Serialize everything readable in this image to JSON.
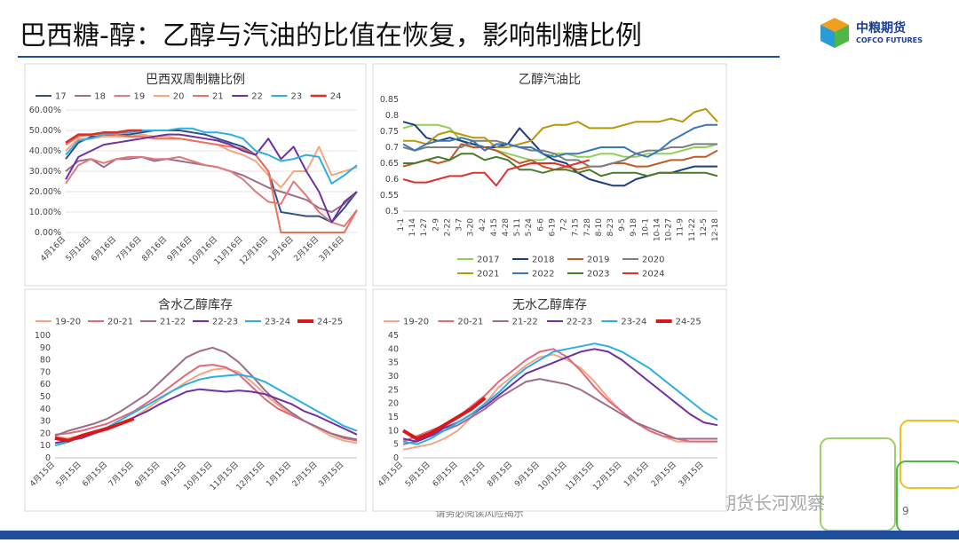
{
  "header": {
    "title": "巴西糖-醇：乙醇与汽油的比值在恢复，影响制糖比例",
    "logo_cn": "中粮期货",
    "logo_en": "COFCO FUTURES"
  },
  "footer": {
    "notice": "请务必阅读风险揭示",
    "watermark": "公众号 · 中粮期货长河观察",
    "page": "9"
  },
  "chart_data": [
    {
      "type": "line",
      "title": "巴西双周制糖比例",
      "legend": "top",
      "grid": true,
      "categories": [
        "4月16日",
        null,
        "5月16日",
        null,
        "6月16日",
        null,
        "7月16日",
        null,
        "8月16日",
        null,
        "9月16日",
        null,
        "10月16日",
        null,
        "11月16日",
        null,
        "12月16日",
        null,
        "1月16日",
        null,
        "2月16日",
        null,
        "3月16日",
        null
      ],
      "ylim": [
        0,
        60
      ],
      "yticks": [
        {
          "value": 0,
          "label": "0.00%"
        },
        {
          "value": 10,
          "label": "10.00%"
        },
        {
          "value": 20,
          "label": "20.00%"
        },
        {
          "value": 30,
          "label": "30.00%"
        },
        {
          "value": 40,
          "label": "40.00%"
        },
        {
          "value": 50,
          "label": "50.00%"
        },
        {
          "value": 60,
          "label": "60.00%"
        }
      ],
      "series": [
        {
          "name": "17",
          "color": "#2e4f8a",
          "values": [
            36,
            44,
            47,
            47,
            48,
            48,
            49,
            50,
            50,
            50,
            49,
            48,
            46,
            44,
            42,
            38,
            30,
            10,
            9,
            8,
            8,
            5,
            12,
            20
          ]
        },
        {
          "name": "18",
          "color": "#9e6b8a",
          "values": [
            30,
            35,
            36,
            32,
            36,
            36,
            37,
            35,
            36,
            35,
            34,
            33,
            32,
            30,
            28,
            25,
            22,
            20,
            18,
            16,
            12,
            10,
            14,
            20
          ]
        },
        {
          "name": "19",
          "color": "#e07a7a",
          "values": [
            24,
            33,
            36,
            34,
            36,
            37,
            37,
            36,
            36,
            37,
            35,
            33,
            32,
            30,
            26,
            20,
            15,
            14,
            25,
            18,
            10,
            5,
            3,
            11
          ]
        },
        {
          "name": "20",
          "color": "#f4a582",
          "values": [
            40,
            46,
            46,
            47,
            47,
            47,
            48,
            47,
            47,
            46,
            45,
            44,
            43,
            40,
            38,
            35,
            28,
            22,
            30,
            30,
            42,
            28,
            30,
            32
          ]
        },
        {
          "name": "21",
          "color": "#e8735a",
          "values": [
            43,
            47,
            48,
            48,
            48,
            47,
            47,
            46,
            46,
            46,
            45,
            44,
            43,
            42,
            41,
            38,
            30,
            0,
            0,
            0,
            0,
            0,
            0,
            11
          ]
        },
        {
          "name": "22",
          "color": "#7030a0",
          "values": [
            26,
            37,
            40,
            43,
            44,
            45,
            46,
            47,
            48,
            48,
            47,
            46,
            45,
            43,
            40,
            38,
            46,
            36,
            42,
            30,
            20,
            5,
            15,
            20
          ]
        },
        {
          "name": "23",
          "color": "#2ab0e0",
          "values": [
            38,
            45,
            46,
            48,
            49,
            49,
            50,
            50,
            50,
            51,
            51,
            49,
            49,
            48,
            46,
            40,
            38,
            35,
            36,
            38,
            37,
            24,
            28,
            33
          ]
        },
        {
          "name": "24",
          "color": "#d73027",
          "values": [
            44,
            48,
            48,
            49,
            49,
            50,
            50,
            null,
            null,
            null,
            null,
            null,
            null,
            null,
            null,
            null,
            null,
            null,
            null,
            null,
            null,
            null,
            null,
            null
          ]
        }
      ]
    },
    {
      "type": "line",
      "title": "乙醇汽油比",
      "legend": "bottom",
      "grid": false,
      "categories": [
        "1-1",
        "1-14",
        "1-27",
        "2-9",
        "2-22",
        "3-7",
        "3-20",
        "4-2",
        "4-15",
        "4-28",
        "5-11",
        "5-24",
        "6-6",
        "6-19",
        "7-2",
        "7-15",
        "7-28",
        "8-10",
        "8-23",
        "9-5",
        "9-18",
        "10-1",
        "10-14",
        "10-27",
        "11-9",
        "11-22",
        "12-5",
        "12-18"
      ],
      "ylim": [
        0.5,
        0.85
      ],
      "yticks": [
        0.5,
        0.55,
        0.6,
        0.65,
        0.7,
        0.75,
        0.8,
        0.85
      ],
      "series": [
        {
          "name": "2017",
          "color": "#8fcf5c",
          "values": [
            0.76,
            0.77,
            0.77,
            0.77,
            0.76,
            0.72,
            0.7,
            0.7,
            0.69,
            0.68,
            0.67,
            0.66,
            0.66,
            0.68,
            0.68,
            0.67,
            0.67,
            0.68,
            0.68,
            0.67,
            0.67,
            0.68,
            0.68,
            0.68,
            0.69,
            0.7,
            0.7,
            0.71
          ]
        },
        {
          "name": "2018",
          "color": "#1f3f7a",
          "values": [
            0.78,
            0.77,
            0.73,
            0.72,
            0.73,
            0.72,
            0.71,
            0.7,
            0.7,
            0.71,
            0.76,
            0.72,
            0.68,
            0.66,
            0.65,
            0.62,
            0.6,
            0.59,
            0.58,
            0.58,
            0.6,
            0.61,
            0.62,
            0.62,
            0.63,
            0.64,
            0.64,
            0.64
          ]
        },
        {
          "name": "2019",
          "color": "#c05a28",
          "values": [
            0.64,
            0.65,
            0.66,
            0.65,
            0.66,
            0.71,
            0.7,
            0.7,
            0.69,
            0.67,
            0.65,
            0.66,
            0.64,
            0.63,
            0.64,
            0.63,
            0.64,
            0.64,
            0.65,
            0.65,
            0.64,
            0.64,
            0.65,
            0.66,
            0.66,
            0.67,
            0.67,
            0.69
          ]
        },
        {
          "name": "2020",
          "color": "#7f7f7f",
          "values": [
            0.7,
            0.69,
            0.7,
            0.7,
            0.7,
            0.7,
            0.72,
            0.72,
            0.72,
            0.71,
            0.7,
            0.69,
            0.69,
            0.68,
            0.66,
            0.66,
            0.64,
            0.64,
            0.65,
            0.66,
            0.68,
            0.69,
            0.69,
            0.7,
            0.7,
            0.71,
            0.71,
            0.71
          ]
        },
        {
          "name": "2021",
          "color": "#b8960c",
          "values": [
            0.72,
            0.72,
            0.71,
            0.74,
            0.75,
            0.74,
            0.73,
            0.73,
            0.7,
            0.7,
            0.71,
            0.72,
            0.76,
            0.77,
            0.77,
            0.78,
            0.76,
            0.76,
            0.76,
            0.77,
            0.78,
            0.78,
            0.78,
            0.79,
            0.78,
            0.81,
            0.82,
            0.78
          ]
        },
        {
          "name": "2022",
          "color": "#3a78b5",
          "values": [
            0.71,
            0.69,
            0.71,
            0.72,
            0.72,
            0.73,
            0.72,
            0.69,
            0.71,
            0.71,
            0.7,
            0.7,
            0.68,
            0.67,
            0.68,
            0.68,
            0.69,
            0.7,
            0.7,
            0.7,
            0.68,
            0.67,
            0.69,
            0.72,
            0.74,
            0.76,
            0.77,
            0.77
          ]
        },
        {
          "name": "2023",
          "color": "#4a7a2a",
          "values": [
            0.65,
            0.65,
            0.66,
            0.67,
            0.66,
            0.68,
            0.68,
            0.66,
            0.67,
            0.66,
            0.63,
            0.63,
            0.62,
            0.63,
            0.63,
            0.62,
            0.63,
            0.61,
            0.62,
            0.62,
            0.62,
            0.61,
            0.62,
            0.62,
            0.62,
            0.62,
            0.62,
            0.61
          ]
        },
        {
          "name": "2024",
          "color": "#e03030",
          "values": [
            0.6,
            0.59,
            0.59,
            0.6,
            0.61,
            0.61,
            0.62,
            0.62,
            0.58,
            0.63,
            0.64,
            0.65,
            0.65,
            0.65,
            0.64,
            0.65,
            0.66,
            null,
            null,
            null,
            null,
            null,
            null,
            null,
            null,
            null,
            null,
            null
          ]
        }
      ]
    },
    {
      "type": "line",
      "title": "含水乙醇库存",
      "legend": "top",
      "grid": false,
      "categories": [
        "4月15日",
        null,
        "5月15日",
        null,
        "6月15日",
        null,
        "7月15日",
        null,
        "8月15日",
        null,
        "9月15日",
        null,
        "10月15日",
        null,
        "11月15日",
        null,
        "12月15日",
        null,
        "1月15日",
        null,
        "2月15日",
        null,
        "3月15日",
        null
      ],
      "ylim": [
        0,
        100
      ],
      "yticks": [
        0,
        10,
        20,
        30,
        40,
        50,
        60,
        70,
        80,
        90,
        100
      ],
      "series": [
        {
          "name": "19-20",
          "color": "#f4a582",
          "values": [
            17,
            16,
            18,
            20,
            23,
            28,
            33,
            40,
            48,
            55,
            62,
            68,
            72,
            73,
            70,
            62,
            52,
            43,
            35,
            30,
            24,
            18,
            14,
            12
          ]
        },
        {
          "name": "20-21",
          "color": "#e06a7a",
          "values": [
            19,
            20,
            22,
            25,
            28,
            33,
            38,
            45,
            52,
            60,
            68,
            75,
            76,
            74,
            68,
            58,
            48,
            40,
            35,
            30,
            25,
            20,
            16,
            14
          ]
        },
        {
          "name": "21-22",
          "color": "#9e6b8a",
          "values": [
            18,
            22,
            25,
            28,
            32,
            38,
            45,
            52,
            62,
            72,
            82,
            87,
            90,
            86,
            78,
            67,
            55,
            45,
            37,
            30,
            25,
            20,
            17,
            15
          ]
        },
        {
          "name": "22-23",
          "color": "#7030a0",
          "values": [
            12,
            14,
            16,
            20,
            24,
            28,
            33,
            38,
            44,
            49,
            54,
            56,
            55,
            54,
            55,
            54,
            52,
            48,
            44,
            38,
            34,
            29,
            24,
            19
          ]
        },
        {
          "name": "23-24",
          "color": "#2ab0e0",
          "values": [
            10,
            13,
            17,
            21,
            25,
            31,
            37,
            43,
            49,
            55,
            60,
            64,
            66,
            67,
            68,
            66,
            62,
            56,
            50,
            44,
            38,
            32,
            26,
            22
          ]
        },
        {
          "name": "24-25",
          "color": "#d7191c",
          "values": [
            16,
            14,
            18,
            21,
            24,
            28,
            32,
            null,
            null,
            null,
            null,
            null,
            null,
            null,
            null,
            null,
            null,
            null,
            null,
            null,
            null,
            null,
            null,
            null
          ]
        }
      ]
    },
    {
      "type": "line",
      "title": "无水乙醇库存",
      "legend": "top",
      "grid": false,
      "categories": [
        "4月15日",
        null,
        "5月15日",
        null,
        "6月15日",
        null,
        "7月15日",
        null,
        "8月15日",
        null,
        "9月15日",
        null,
        "10月15日",
        null,
        "11月15日",
        null,
        "12月15日",
        null,
        "1月15日",
        null,
        "2月15日",
        null,
        "3月15日",
        null
      ],
      "ylim": [
        0,
        45
      ],
      "yticks": [
        0,
        5,
        10,
        15,
        20,
        25,
        30,
        35,
        40,
        45
      ],
      "series": [
        {
          "name": "19-20",
          "color": "#f4a582",
          "values": [
            3,
            4,
            5,
            7,
            10,
            15,
            20,
            26,
            30,
            34,
            37,
            38,
            36,
            33,
            28,
            22,
            17,
            13,
            10,
            8,
            6,
            6,
            6,
            6
          ]
        },
        {
          "name": "20-21",
          "color": "#e06a7a",
          "values": [
            6,
            8,
            10,
            12,
            15,
            19,
            23,
            28,
            32,
            36,
            39,
            40,
            37,
            32,
            26,
            21,
            17,
            13,
            10,
            8,
            7,
            6,
            6,
            6
          ]
        },
        {
          "name": "21-22",
          "color": "#9e6b8a",
          "values": [
            5,
            6,
            8,
            10,
            12,
            15,
            18,
            22,
            25,
            28,
            29,
            28,
            27,
            25,
            22,
            19,
            16,
            13,
            11,
            9,
            7,
            7,
            7,
            7
          ]
        },
        {
          "name": "22-23",
          "color": "#7030a0",
          "values": [
            7,
            6,
            8,
            11,
            13,
            16,
            19,
            23,
            27,
            31,
            33,
            35,
            37,
            39,
            40,
            39,
            36,
            32,
            28,
            24,
            20,
            16,
            13,
            12
          ]
        },
        {
          "name": "23-24",
          "color": "#2ab0e0",
          "values": [
            6,
            5,
            7,
            10,
            13,
            16,
            20,
            24,
            29,
            33,
            36,
            39,
            40,
            41,
            42,
            41,
            39,
            36,
            33,
            29,
            25,
            21,
            17,
            14
          ]
        },
        {
          "name": "24-25",
          "color": "#d7191c",
          "values": [
            10,
            7,
            9,
            12,
            15,
            18,
            22,
            null,
            null,
            null,
            null,
            null,
            null,
            null,
            null,
            null,
            null,
            null,
            null,
            null,
            null,
            null,
            null,
            null
          ]
        }
      ]
    }
  ]
}
